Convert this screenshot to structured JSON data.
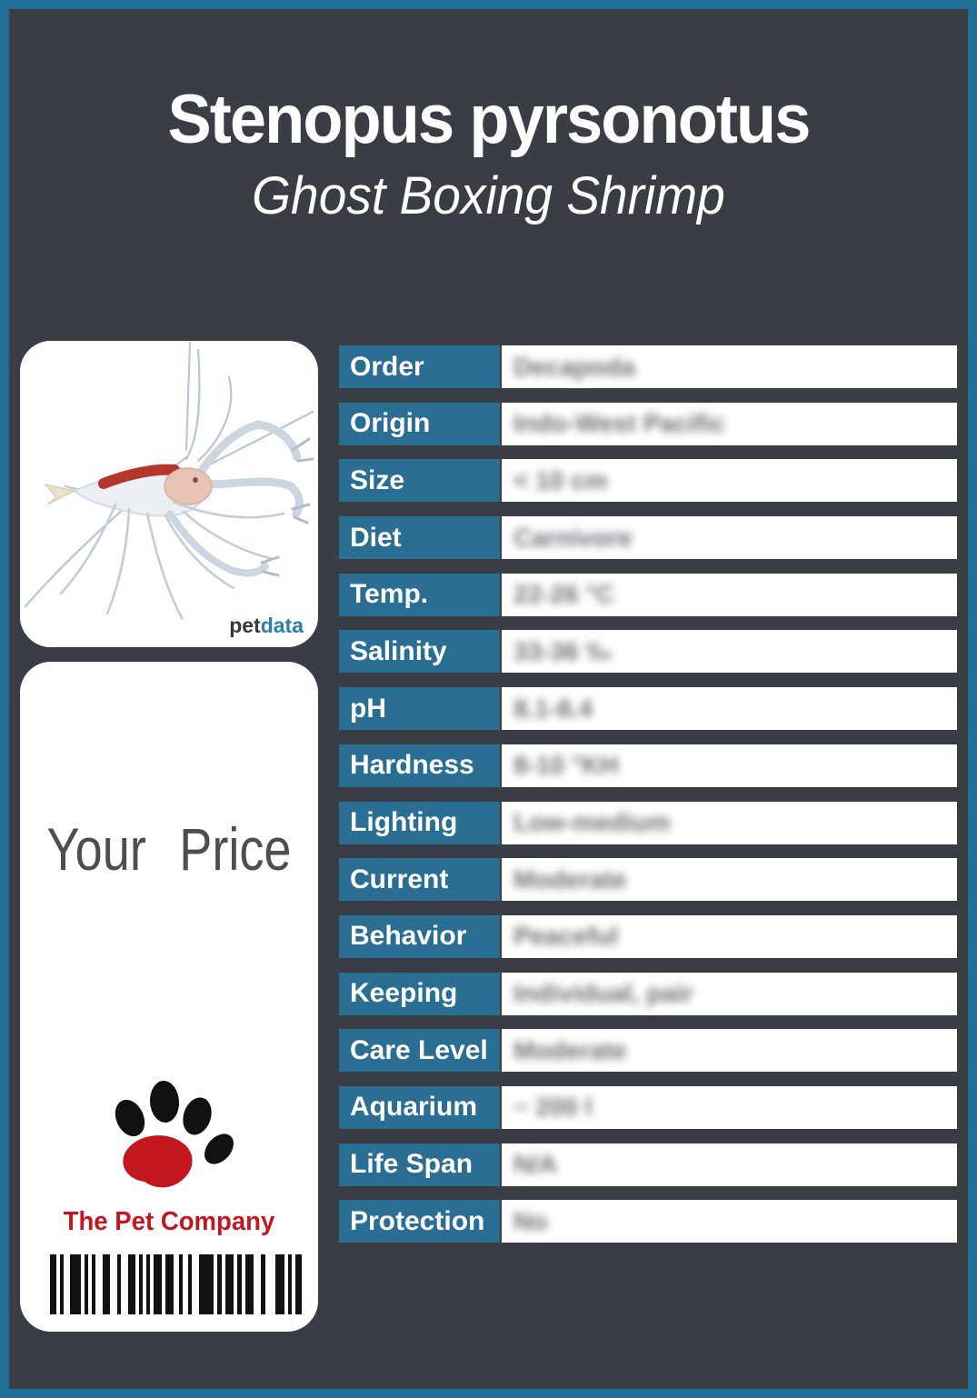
{
  "header": {
    "title": "Stenopus pyrsonotus",
    "subtitle": "Ghost Boxing Shrimp"
  },
  "photo": {
    "subject": "ghost boxing shrimp",
    "watermark_pet": "pet",
    "watermark_data": "data"
  },
  "price_card": {
    "label": "Your Price",
    "company": "The Pet Company"
  },
  "table": {
    "rows": [
      {
        "label": "Order",
        "value": "Decapoda"
      },
      {
        "label": "Origin",
        "value": "Indo-West Pacific"
      },
      {
        "label": "Size",
        "value": "< 10 cm"
      },
      {
        "label": "Diet",
        "value": "Carnivore"
      },
      {
        "label": "Temp.",
        "value": "22-26 °C"
      },
      {
        "label": "Salinity",
        "value": "33-36 ‰"
      },
      {
        "label": "pH",
        "value": "8.1-8.4"
      },
      {
        "label": "Hardness",
        "value": "8-10 °KH"
      },
      {
        "label": "Lighting",
        "value": "Low-medium"
      },
      {
        "label": "Current",
        "value": "Moderate"
      },
      {
        "label": "Behavior",
        "value": "Peaceful"
      },
      {
        "label": "Keeping",
        "value": "Individual, pair"
      },
      {
        "label": "Care Level",
        "value": "Moderate"
      },
      {
        "label": "Aquarium",
        "value": "~ 200 l"
      },
      {
        "label": "Life Span",
        "value": "N/A"
      },
      {
        "label": "Protection",
        "value": "No"
      }
    ]
  },
  "colors": {
    "frame_teal": "#1e6e96",
    "background": "#3a3d44",
    "label_teal": "#2b6e94",
    "company_red": "#c2171f",
    "shrimp_stripe_red": "#b5362b",
    "watermark_data_blue": "#2d7fa8"
  }
}
